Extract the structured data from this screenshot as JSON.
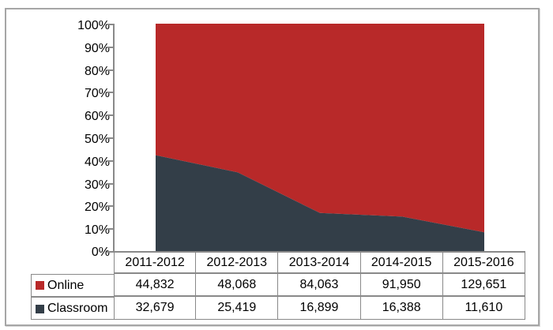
{
  "chart_data": {
    "type": "area",
    "stacking": "percent",
    "title": "",
    "xlabel": "",
    "ylabel": "",
    "ylim": [
      0,
      100
    ],
    "grid": false,
    "legend_position": "left-of-data-table",
    "categories": [
      "2011-2012",
      "2012-2013",
      "2013-2014",
      "2014-2015",
      "2015-2016"
    ],
    "series": [
      {
        "name": "Online",
        "color": "#b82929",
        "values": [
          44832,
          48068,
          84063,
          91950,
          129651
        ],
        "labels": [
          "44,832",
          "48,068",
          "84,063",
          "91,950",
          "129,651"
        ]
      },
      {
        "name": "Classroom",
        "color": "#333e48",
        "values": [
          32679,
          25419,
          16899,
          16388,
          11610
        ],
        "labels": [
          "32,679",
          "25,419",
          "16,899",
          "16,388",
          "11,610"
        ]
      }
    ],
    "y_ticks": [
      "100%",
      "90%",
      "80%",
      "70%",
      "60%",
      "50%",
      "40%",
      "30%",
      "20%",
      "10%",
      "0%"
    ]
  },
  "colors": {
    "online_fill": "#b82929",
    "classroom_fill": "#333e48",
    "axis": "#898989",
    "table_border": "#898989",
    "frame_border": "#a6a6a6",
    "text": "#000000",
    "background": "#ffffff"
  }
}
